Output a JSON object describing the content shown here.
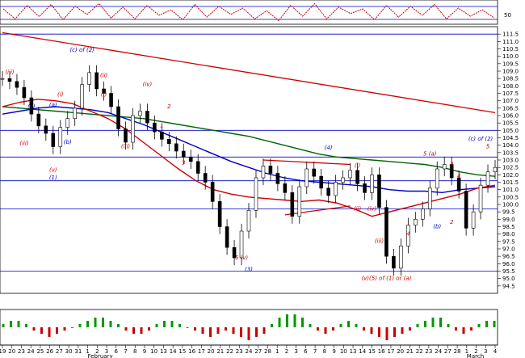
{
  "chart_data": [
    {
      "type": "line",
      "panel": "oscillator-top",
      "yticks": [
        50
      ],
      "series": [
        {
          "values": [
            62,
            40,
            70,
            45,
            72,
            38,
            68,
            50,
            74,
            42,
            66,
            40,
            70,
            48,
            60,
            38,
            72,
            44,
            68,
            50,
            64,
            40,
            58,
            36,
            70,
            46,
            74,
            40,
            66,
            52,
            62,
            38,
            70,
            44,
            68,
            48,
            72,
            40,
            64,
            46,
            60,
            42
          ]
        }
      ]
    },
    {
      "type": "candlestick",
      "panel": "price",
      "ylim": [
        94.0,
        112.0
      ],
      "yticks": [
        94.5,
        95.0,
        95.5,
        96.0,
        96.5,
        97.0,
        97.5,
        98.0,
        98.5,
        99.0,
        99.5,
        100.0,
        100.5,
        101.0,
        101.5,
        102.0,
        102.5,
        103.0,
        103.5,
        104.0,
        104.5,
        105.0,
        105.5,
        106.0,
        106.5,
        107.0,
        107.5,
        108.0,
        108.5,
        109.0,
        109.5,
        110.0,
        110.5,
        111.0,
        111.5
      ],
      "ytick_labels": [
        "94.5",
        "95.0",
        "95.5",
        "96.0",
        "96.5",
        "97.0",
        "97.5",
        "98.0",
        "98.5",
        "99.0",
        "99.5",
        "100.0",
        "100.5",
        "101.0",
        "101.5",
        "102.0",
        "102.5",
        "103.0",
        "103.5",
        "104.0",
        "104.5",
        "105.0",
        "105.5",
        "106.0",
        "106.5",
        "107.0",
        "107.5",
        "108.0",
        "108.5",
        "109.0",
        "109.5",
        "110.0",
        "110.5",
        "111.0",
        "111.5"
      ],
      "x_tick_labels": [
        "19",
        "20",
        "23",
        "24",
        "25",
        "26",
        "27",
        "30",
        "31",
        "1",
        "2",
        "3",
        "6",
        "7",
        "8",
        "9",
        "10",
        "13",
        "14",
        "15",
        "16",
        "17",
        "20",
        "21",
        "22",
        "23",
        "24",
        "27",
        "28",
        "1",
        "2",
        "3",
        "6",
        "7",
        "8",
        "9",
        "10",
        "13",
        "14",
        "15",
        "16",
        "17",
        "20",
        "21",
        "22",
        "23",
        "24",
        "27",
        "28",
        "1",
        "2",
        "3",
        "4"
      ],
      "month_labels": [
        {
          "label": "February",
          "index": 9
        },
        {
          "label": "March",
          "index": 49
        }
      ],
      "series_close": [
        108.5,
        108.3,
        107.9,
        107.2,
        106.1,
        105.3,
        104.8,
        103.9,
        105.2,
        105.8,
        106.5,
        108.1,
        108.9,
        107.8,
        107.5,
        106.6,
        105.1,
        104.2,
        106.0,
        106.3,
        105.5,
        104.9,
        104.4,
        104.1,
        103.6,
        103.2,
        102.9,
        102.1,
        101.5,
        100.2,
        98.5,
        97.1,
        96.4,
        98.2,
        99.6,
        101.8,
        102.6,
        102.1,
        101.4,
        100.8,
        99.2,
        101.2,
        102.4,
        101.9,
        101.1,
        100.6,
        101.5,
        101.8,
        102.3,
        101.4,
        100.8,
        102.0,
        99.8,
        96.5,
        95.7,
        97.2,
        98.6,
        99.0,
        99.7,
        101.1,
        102.4,
        102.7,
        101.8,
        100.9,
        98.4,
        99.5,
        101.3,
        102.2,
        102.5
      ],
      "horizontal_levels": [
        111.5,
        105.0,
        103.2,
        101.6,
        99.7,
        95.5
      ],
      "trendlines": [
        {
          "from": [
            0,
            111.6
          ],
          "to": [
            68,
            106.2
          ],
          "color": "#cc0000"
        },
        {
          "from": [
            36,
            103.0
          ],
          "to": [
            48,
            102.7
          ],
          "color": "#cc0000"
        },
        {
          "from": [
            39,
            99.3
          ],
          "to": [
            48,
            99.9
          ],
          "color": "#cc0000"
        }
      ],
      "moving_averages": [
        {
          "color": "#006600",
          "values": [
            106.6,
            106.5,
            106.4,
            106.3,
            106.2,
            106.1,
            106.0,
            105.9,
            105.8,
            105.6,
            105.4,
            105.2,
            105.0,
            104.8,
            104.6,
            104.3,
            104.0,
            103.7,
            103.4,
            103.2,
            103.1,
            103.0,
            102.9,
            102.8,
            102.7,
            102.5,
            102.2,
            102.0,
            101.9
          ]
        },
        {
          "color": "#0000cc",
          "values": [
            106.1,
            106.3,
            106.5,
            106.6,
            106.5,
            106.4,
            106.2,
            105.8,
            105.4,
            104.9,
            104.4,
            103.9,
            103.4,
            102.9,
            102.5,
            102.1,
            101.8,
            101.6,
            101.5,
            101.4,
            101.3,
            101.2,
            101.0,
            100.9,
            100.9,
            100.8,
            101.0,
            101.1,
            101.2
          ]
        },
        {
          "color": "#cc0000",
          "values": [
            106.6,
            106.9,
            107.1,
            107.0,
            106.8,
            106.3,
            105.8,
            105.1,
            104.2,
            103.3,
            102.4,
            101.6,
            101.0,
            100.7,
            100.5,
            100.4,
            100.3,
            100.2,
            100.3,
            100.1,
            99.7,
            99.2,
            99.5,
            99.8,
            100.1,
            100.4,
            100.7,
            101.1,
            101.3
          ]
        }
      ],
      "annotations": [
        {
          "text": "(c) of (2)",
          "color": "blue",
          "x": 11,
          "y": 110.3
        },
        {
          "text": "(iii)",
          "color": "red",
          "x": 1,
          "y": 108.8
        },
        {
          "text": "(ii)",
          "color": "red",
          "x": 14,
          "y": 108.6
        },
        {
          "text": "(iv)",
          "color": "red",
          "x": 20,
          "y": 108.0
        },
        {
          "text": "(i)",
          "color": "red",
          "x": 8,
          "y": 107.3
        },
        {
          "text": "(i)",
          "color": "red",
          "x": 14,
          "y": 107.3
        },
        {
          "text": "(a)",
          "color": "blue",
          "x": 7,
          "y": 106.6
        },
        {
          "text": "(v)",
          "color": "blue",
          "x": 4,
          "y": 106.5
        },
        {
          "text": "(iii)",
          "color": "red",
          "x": 3,
          "y": 104.0
        },
        {
          "text": "(b)",
          "color": "blue",
          "x": 9,
          "y": 104.1
        },
        {
          "text": "(iii)",
          "color": "red",
          "x": 17,
          "y": 103.8
        },
        {
          "text": "(v)",
          "color": "red",
          "x": 7,
          "y": 102.2
        },
        {
          "text": "(1)",
          "color": "blue",
          "x": 7,
          "y": 101.7
        },
        {
          "text": "1",
          "color": "red",
          "x": 22,
          "y": 105.2
        },
        {
          "text": "2",
          "color": "red",
          "x": 23,
          "y": 106.5
        },
        {
          "text": "3",
          "color": "red",
          "x": 25,
          "y": 102.7
        },
        {
          "text": "(4)",
          "color": "blue",
          "x": 45,
          "y": 103.7
        },
        {
          "text": "(i)",
          "color": "red",
          "x": 49,
          "y": 102.5
        },
        {
          "text": "(ii)",
          "color": "red",
          "x": 49,
          "y": 99.6
        },
        {
          "text": "5 (v)",
          "color": "red",
          "x": 33,
          "y": 96.3
        },
        {
          "text": "(3)",
          "color": "blue",
          "x": 34,
          "y": 95.5
        },
        {
          "text": "5 (a)",
          "color": "red",
          "x": 59,
          "y": 103.3
        },
        {
          "text": "(c) of (2)",
          "color": "blue",
          "x": 66,
          "y": 104.3
        },
        {
          "text": "5",
          "color": "red",
          "x": 67,
          "y": 103.8
        },
        {
          "text": "3",
          "color": "red",
          "x": 62,
          "y": 102.6
        },
        {
          "text": "4",
          "color": "red",
          "x": 63,
          "y": 101.8
        },
        {
          "text": "4",
          "color": "red",
          "x": 56,
          "y": 97.9
        },
        {
          "text": "(b)",
          "color": "blue",
          "x": 60,
          "y": 98.4
        },
        {
          "text": "2",
          "color": "red",
          "x": 62,
          "y": 98.7
        },
        {
          "text": "(iii)",
          "color": "red",
          "x": 52,
          "y": 97.4
        },
        {
          "text": "(iv)",
          "color": "red",
          "x": 51,
          "y": 99.6
        },
        {
          "text": "(v)(5) of (1) or (a)",
          "color": "red",
          "x": 53,
          "y": 94.9
        }
      ]
    },
    {
      "type": "bar",
      "panel": "histogram-bottom",
      "values": [
        1,
        2,
        2,
        1,
        -1,
        -2,
        -3,
        -2,
        -1,
        0,
        1,
        2,
        3,
        3,
        2,
        1,
        -1,
        -2,
        -2,
        -1,
        1,
        2,
        2,
        1,
        0,
        -1,
        -2,
        -3,
        -2,
        -1,
        -2,
        -3,
        -4,
        -3,
        -2,
        1,
        3,
        4,
        4,
        3,
        1,
        -1,
        -2,
        -1,
        1,
        2,
        1,
        -1,
        -2,
        -3,
        -4,
        -3,
        -2,
        -1,
        1,
        2,
        3,
        3,
        1,
        -1,
        -2,
        -1,
        1,
        2,
        2
      ]
    }
  ]
}
